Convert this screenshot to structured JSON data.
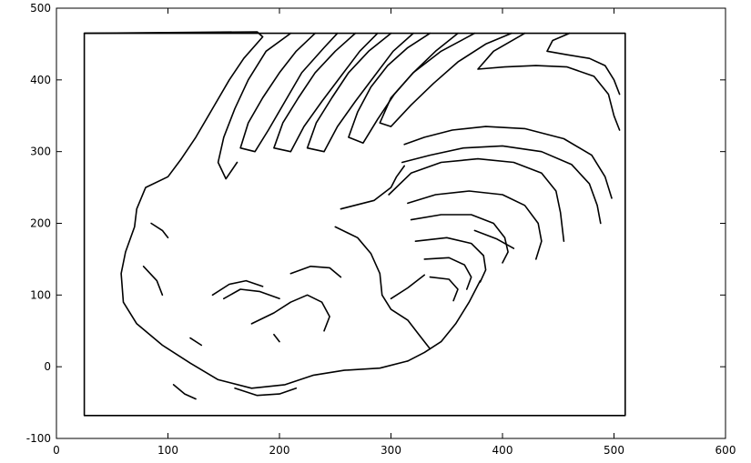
{
  "chart_data": {
    "type": "scatter",
    "title": "",
    "xlabel": "",
    "ylabel": "",
    "xlim": [
      0,
      600
    ],
    "ylim": [
      -100,
      500
    ],
    "grid": false,
    "legend": "none",
    "xticks": [
      0,
      100,
      200,
      300,
      400,
      500,
      600
    ],
    "yticks": [
      -100,
      0,
      100,
      200,
      300,
      400,
      500
    ],
    "xtick_labels": [
      "0",
      "100",
      "200",
      "300",
      "400",
      "500",
      "600"
    ],
    "ytick_labels": [
      "-100",
      "0",
      "100",
      "200",
      "300",
      "400",
      "500"
    ],
    "line_color": "#000000",
    "series": [
      {
        "values": [
          [
            25,
            -68
          ],
          [
            510,
            -68
          ],
          [
            510,
            465
          ],
          [
            25,
            465
          ],
          [
            25,
            -68
          ]
        ]
      },
      {
        "values": [
          [
            25,
            465
          ],
          [
            180,
            467
          ],
          [
            185,
            460
          ],
          [
            168,
            430
          ],
          [
            155,
            400
          ],
          [
            140,
            360
          ],
          [
            125,
            320
          ],
          [
            112,
            290
          ]
        ]
      },
      {
        "values": [
          [
            112,
            290
          ],
          [
            100,
            265
          ],
          [
            80,
            250
          ],
          [
            72,
            220
          ],
          [
            70,
            195
          ],
          [
            62,
            160
          ],
          [
            58,
            130
          ],
          [
            60,
            90
          ],
          [
            72,
            60
          ],
          [
            95,
            30
          ],
          [
            120,
            5
          ],
          [
            145,
            -18
          ],
          [
            175,
            -30
          ],
          [
            205,
            -25
          ],
          [
            230,
            -12
          ],
          [
            258,
            -5
          ],
          [
            290,
            -2
          ],
          [
            315,
            8
          ]
        ]
      },
      {
        "values": [
          [
            315,
            8
          ],
          [
            330,
            20
          ],
          [
            345,
            35
          ],
          [
            358,
            60
          ],
          [
            370,
            90
          ],
          [
            380,
            120
          ]
        ]
      },
      {
        "values": [
          [
            210,
            465
          ],
          [
            188,
            440
          ],
          [
            172,
            400
          ],
          [
            160,
            360
          ],
          [
            150,
            320
          ],
          [
            145,
            285
          ],
          [
            152,
            262
          ],
          [
            162,
            285
          ]
        ]
      },
      {
        "values": [
          [
            232,
            465
          ],
          [
            215,
            440
          ],
          [
            200,
            410
          ],
          [
            185,
            375
          ],
          [
            172,
            340
          ],
          [
            165,
            305
          ],
          [
            178,
            300
          ],
          [
            190,
            330
          ],
          [
            205,
            370
          ],
          [
            220,
            410
          ],
          [
            240,
            445
          ],
          [
            252,
            465
          ]
        ]
      },
      {
        "values": [
          [
            268,
            465
          ],
          [
            250,
            440
          ],
          [
            232,
            410
          ],
          [
            217,
            375
          ],
          [
            203,
            340
          ],
          [
            195,
            305
          ],
          [
            210,
            300
          ],
          [
            222,
            335
          ],
          [
            238,
            370
          ],
          [
            255,
            405
          ],
          [
            272,
            440
          ],
          [
            288,
            465
          ]
        ]
      },
      {
        "values": [
          [
            300,
            465
          ],
          [
            280,
            440
          ],
          [
            262,
            410
          ],
          [
            247,
            375
          ],
          [
            233,
            340
          ],
          [
            225,
            305
          ],
          [
            240,
            300
          ],
          [
            252,
            335
          ],
          [
            268,
            370
          ],
          [
            285,
            405
          ],
          [
            302,
            440
          ],
          [
            320,
            465
          ]
        ]
      },
      {
        "values": [
          [
            335,
            465
          ],
          [
            315,
            445
          ],
          [
            297,
            420
          ],
          [
            282,
            390
          ],
          [
            270,
            355
          ],
          [
            262,
            320
          ],
          [
            275,
            312
          ],
          [
            288,
            345
          ],
          [
            303,
            380
          ],
          [
            320,
            410
          ],
          [
            340,
            440
          ],
          [
            360,
            465
          ]
        ]
      },
      {
        "values": [
          [
            375,
            465
          ],
          [
            345,
            440
          ],
          [
            320,
            410
          ],
          [
            300,
            375
          ],
          [
            290,
            340
          ],
          [
            300,
            335
          ],
          [
            318,
            365
          ],
          [
            338,
            395
          ],
          [
            360,
            425
          ],
          [
            385,
            450
          ],
          [
            408,
            465
          ]
        ]
      },
      {
        "values": [
          [
            420,
            465
          ],
          [
            392,
            440
          ],
          [
            378,
            415
          ],
          [
            402,
            418
          ],
          [
            430,
            420
          ],
          [
            458,
            418
          ],
          [
            482,
            405
          ],
          [
            495,
            380
          ],
          [
            500,
            350
          ],
          [
            505,
            330
          ]
        ]
      },
      {
        "values": [
          [
            460,
            465
          ],
          [
            445,
            455
          ],
          [
            440,
            440
          ],
          [
            458,
            435
          ],
          [
            478,
            430
          ],
          [
            492,
            420
          ],
          [
            500,
            400
          ],
          [
            505,
            380
          ]
        ]
      },
      {
        "values": [
          [
            312,
            310
          ],
          [
            330,
            320
          ],
          [
            355,
            330
          ],
          [
            385,
            335
          ],
          [
            420,
            332
          ],
          [
            455,
            318
          ],
          [
            480,
            295
          ],
          [
            492,
            265
          ],
          [
            498,
            235
          ]
        ]
      },
      {
        "values": [
          [
            310,
            285
          ],
          [
            335,
            295
          ],
          [
            365,
            305
          ],
          [
            400,
            308
          ],
          [
            435,
            300
          ],
          [
            462,
            282
          ],
          [
            478,
            255
          ],
          [
            485,
            225
          ],
          [
            488,
            200
          ]
        ]
      },
      {
        "values": [
          [
            298,
            240
          ],
          [
            318,
            270
          ],
          [
            345,
            285
          ],
          [
            378,
            290
          ],
          [
            410,
            285
          ],
          [
            435,
            270
          ],
          [
            448,
            245
          ],
          [
            452,
            215
          ],
          [
            455,
            175
          ]
        ]
      },
      {
        "values": [
          [
            315,
            228
          ],
          [
            340,
            240
          ],
          [
            370,
            245
          ],
          [
            400,
            240
          ],
          [
            420,
            225
          ],
          [
            432,
            200
          ],
          [
            435,
            175
          ],
          [
            430,
            150
          ]
        ]
      },
      {
        "values": [
          [
            318,
            205
          ],
          [
            345,
            212
          ],
          [
            372,
            212
          ],
          [
            392,
            200
          ],
          [
            402,
            180
          ],
          [
            405,
            160
          ],
          [
            400,
            145
          ]
        ]
      },
      {
        "values": [
          [
            322,
            175
          ],
          [
            350,
            180
          ],
          [
            372,
            172
          ],
          [
            383,
            155
          ],
          [
            385,
            135
          ],
          [
            380,
            118
          ]
        ]
      },
      {
        "values": [
          [
            330,
            150
          ],
          [
            352,
            152
          ],
          [
            366,
            142
          ],
          [
            372,
            125
          ],
          [
            368,
            108
          ]
        ]
      },
      {
        "values": [
          [
            335,
            125
          ],
          [
            352,
            122
          ],
          [
            360,
            108
          ],
          [
            356,
            92
          ]
        ]
      },
      {
        "values": [
          [
            375,
            190
          ],
          [
            395,
            178
          ],
          [
            410,
            165
          ]
        ]
      },
      {
        "values": [
          [
            255,
            220
          ],
          [
            285,
            232
          ],
          [
            300,
            250
          ],
          [
            305,
            265
          ],
          [
            312,
            280
          ]
        ]
      },
      {
        "values": [
          [
            250,
            195
          ],
          [
            270,
            180
          ],
          [
            282,
            158
          ],
          [
            290,
            130
          ],
          [
            292,
            100
          ],
          [
            300,
            80
          ],
          [
            315,
            65
          ],
          [
            325,
            45
          ],
          [
            335,
            25
          ]
        ]
      },
      {
        "values": [
          [
            300,
            95
          ],
          [
            315,
            110
          ],
          [
            330,
            128
          ]
        ]
      },
      {
        "values": [
          [
            85,
            200
          ],
          [
            95,
            190
          ],
          [
            100,
            180
          ]
        ]
      },
      {
        "values": [
          [
            78,
            140
          ],
          [
            90,
            120
          ],
          [
            95,
            100
          ]
        ]
      },
      {
        "values": [
          [
            140,
            100
          ],
          [
            155,
            115
          ],
          [
            170,
            120
          ],
          [
            185,
            112
          ]
        ]
      },
      {
        "values": [
          [
            150,
            95
          ],
          [
            165,
            108
          ],
          [
            182,
            105
          ],
          [
            200,
            95
          ]
        ]
      },
      {
        "values": [
          [
            175,
            60
          ],
          [
            195,
            75
          ],
          [
            210,
            90
          ],
          [
            225,
            100
          ],
          [
            238,
            90
          ],
          [
            245,
            70
          ],
          [
            240,
            50
          ]
        ]
      },
      {
        "values": [
          [
            210,
            130
          ],
          [
            228,
            140
          ],
          [
            245,
            138
          ],
          [
            255,
            125
          ]
        ]
      },
      {
        "values": [
          [
            105,
            -25
          ],
          [
            115,
            -38
          ],
          [
            125,
            -45
          ]
        ]
      },
      {
        "values": [
          [
            160,
            -30
          ],
          [
            180,
            -40
          ],
          [
            200,
            -38
          ],
          [
            215,
            -30
          ]
        ]
      },
      {
        "values": [
          [
            120,
            40
          ],
          [
            130,
            30
          ]
        ]
      },
      {
        "values": [
          [
            195,
            45
          ],
          [
            200,
            35
          ]
        ]
      }
    ]
  }
}
